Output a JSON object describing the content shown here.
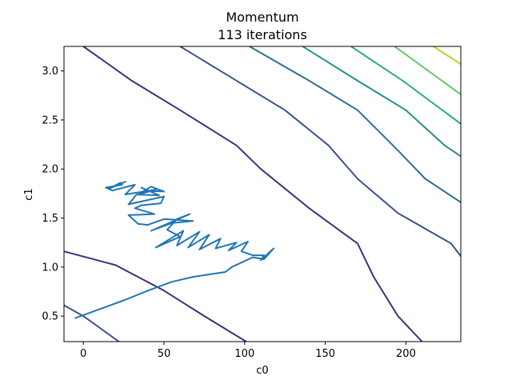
{
  "chart_data": {
    "type": "line",
    "title": "Momentum",
    "subtitle": "113 iterations",
    "xlabel": "c0",
    "ylabel": "c1",
    "xlim": [
      -12,
      234
    ],
    "ylim": [
      0.24,
      3.25
    ],
    "xticks": [
      0,
      50,
      100,
      150,
      200
    ],
    "xtick_labels": [
      "0",
      "50",
      "100",
      "150",
      "200"
    ],
    "yticks": [
      0.5,
      1.0,
      1.5,
      2.0,
      2.5,
      3.0
    ],
    "ytick_labels": [
      "0.5",
      "1.0",
      "1.5",
      "2.0",
      "2.5",
      "3.0"
    ],
    "grid": false,
    "contours": [
      {
        "color": "#472c7a",
        "points": [
          [
            -12,
            1.16
          ],
          [
            20,
            1.02
          ],
          [
            50,
            0.76
          ],
          [
            75,
            0.5
          ],
          [
            101,
            0.24
          ]
        ]
      },
      {
        "color": "#472c7a",
        "points": [
          [
            0,
            3.25
          ],
          [
            30,
            2.9
          ],
          [
            60,
            2.6
          ],
          [
            95,
            2.24
          ],
          [
            110,
            2.0
          ],
          [
            140,
            1.6
          ],
          [
            170,
            1.24
          ],
          [
            180,
            0.9
          ],
          [
            195,
            0.5
          ],
          [
            210,
            0.24
          ]
        ]
      },
      {
        "color": "#3b528b",
        "points": [
          [
            -12,
            0.61
          ],
          [
            0,
            0.5
          ],
          [
            22,
            0.24
          ]
        ]
      },
      {
        "color": "#3b528b",
        "points": [
          [
            60,
            3.25
          ],
          [
            90,
            2.95
          ],
          [
            125,
            2.6
          ],
          [
            152,
            2.24
          ],
          [
            170,
            1.9
          ],
          [
            195,
            1.55
          ],
          [
            228,
            1.24
          ],
          [
            234,
            1.11
          ]
        ]
      },
      {
        "color": "#2c728e",
        "points": [
          [
            103,
            3.25
          ],
          [
            140,
            2.9
          ],
          [
            170,
            2.6
          ],
          [
            192,
            2.24
          ],
          [
            212,
            1.9
          ],
          [
            234,
            1.66
          ]
        ]
      },
      {
        "color": "#21918c",
        "points": [
          [
            136,
            3.25
          ],
          [
            170,
            2.9
          ],
          [
            200,
            2.6
          ],
          [
            224,
            2.24
          ],
          [
            234,
            2.13
          ]
        ]
      },
      {
        "color": "#28ae80",
        "points": [
          [
            166,
            3.25
          ],
          [
            198,
            2.9
          ],
          [
            234,
            2.46
          ]
        ]
      },
      {
        "color": "#5ec962",
        "points": [
          [
            193,
            3.25
          ],
          [
            234,
            2.76
          ]
        ]
      },
      {
        "color": "#addc30",
        "points": [
          [
            217,
            3.25
          ],
          [
            234,
            3.07
          ]
        ]
      }
    ],
    "series": [
      {
        "x": [
          -5,
          25,
          40,
          55,
          68,
          88,
          92,
          105,
          112,
          118,
          110,
          112,
          105,
          98,
          102,
          90,
          95,
          82,
          85,
          72,
          78,
          65,
          72,
          58,
          62,
          45,
          60,
          52,
          58,
          66,
          42,
          55,
          68,
          50,
          40,
          34,
          28,
          44,
          32,
          36,
          48,
          50,
          28,
          33,
          47,
          36,
          40,
          50,
          42,
          34,
          45,
          26,
          32,
          18,
          14,
          24,
          23,
          16,
          26
        ],
        "y": [
          0.48,
          0.66,
          0.76,
          0.85,
          0.9,
          0.95,
          1.0,
          1.1,
          1.08,
          1.19,
          1.07,
          1.12,
          1.12,
          1.16,
          1.26,
          1.17,
          1.25,
          1.19,
          1.29,
          1.18,
          1.33,
          1.2,
          1.36,
          1.22,
          1.37,
          1.2,
          1.31,
          1.38,
          1.49,
          1.54,
          1.37,
          1.45,
          1.47,
          1.49,
          1.43,
          1.44,
          1.53,
          1.54,
          1.6,
          1.63,
          1.65,
          1.72,
          1.64,
          1.74,
          1.73,
          1.81,
          1.78,
          1.77,
          1.82,
          1.74,
          1.79,
          1.74,
          1.84,
          1.78,
          1.81,
          1.84,
          1.86,
          1.8,
          1.87
        ]
      }
    ]
  }
}
